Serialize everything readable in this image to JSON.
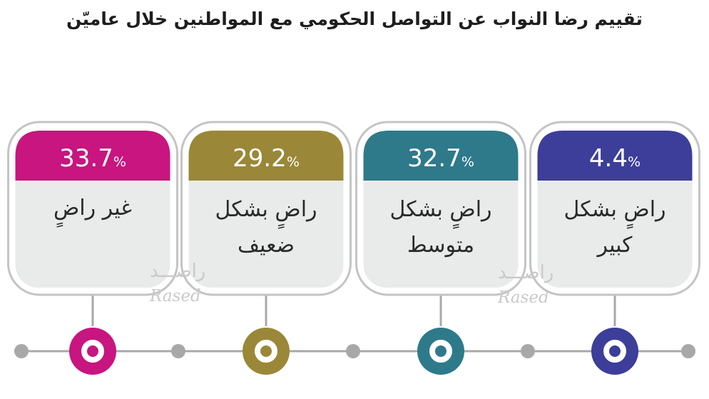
{
  "title": "تقييم رضا النواب عن التواصل الحكومي مع المواطنين خلال عاميّن",
  "watermark": {
    "arabic": "راصـــد",
    "latin": "Rased"
  },
  "chart_data": {
    "type": "bar",
    "title": "تقييم رضا النواب عن التواصل الحكومي مع المواطنين خلال عاميّن",
    "unit": "%",
    "categories": [
      [
        "غير راضٍ"
      ],
      [
        "راضٍ بشكل",
        "ضعيف"
      ],
      [
        "راضٍ بشكل",
        "متوسط"
      ],
      [
        "راضٍ بشكل",
        "كبير"
      ]
    ],
    "values": [
      33.7,
      29.2,
      32.7,
      4.4
    ],
    "value_labels": [
      "33.7",
      "29.2",
      "32.7",
      "4.4"
    ],
    "colors": [
      "#c8157f",
      "#9a8838",
      "#2e7a8a",
      "#3c3e99"
    ]
  },
  "colors": {
    "timeline": "#a8a8a8",
    "card_body": "#e9ebeb",
    "card_outline": "#c4c4c4"
  }
}
